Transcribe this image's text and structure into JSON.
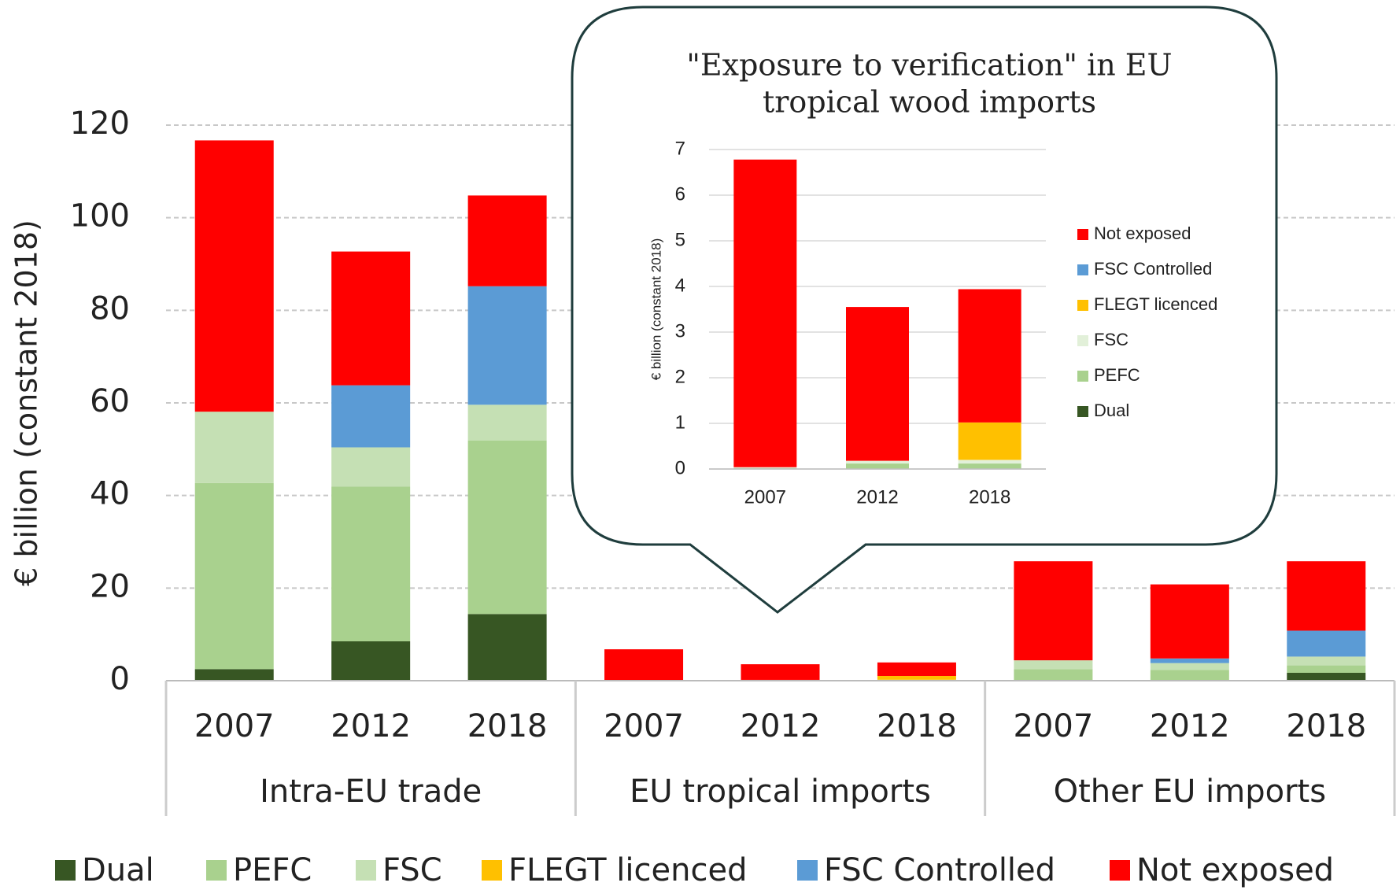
{
  "chart_data": [
    {
      "type": "bar",
      "stacked": true,
      "y_label": "€ billion (constant 2018)",
      "categories": [
        "2007",
        "2012",
        "2018",
        "2007",
        "2012",
        "2018",
        "2007",
        "2012",
        "2018"
      ],
      "groups": [
        "Intra-EU trade",
        "EU tropical imports",
        "Other EU imports"
      ],
      "ylim": [
        0,
        120
      ],
      "yticks": [
        0,
        20,
        40,
        60,
        80,
        100,
        120
      ],
      "grid": true,
      "legend": "bottom",
      "series": [
        {
          "name": "Dual",
          "color": "#375623",
          "values": [
            2.5,
            8.5,
            14.4,
            0,
            0,
            0,
            0,
            0,
            1.7
          ]
        },
        {
          "name": "PEFC",
          "color": "#a9d18e",
          "values": [
            40.2,
            33.4,
            37.5,
            0.02,
            0.12,
            0.12,
            2.5,
            2.3,
            1.6
          ]
        },
        {
          "name": "FSC",
          "color": "#c5e0b4",
          "values": [
            15.4,
            8.5,
            7.7,
            0.02,
            0.06,
            0.08,
            1.9,
            1.5,
            1.9
          ]
        },
        {
          "name": "FLEGT licenced",
          "color": "#ffc000",
          "values": [
            0,
            0,
            0,
            0,
            0,
            0.82,
            0,
            0,
            0
          ]
        },
        {
          "name": "FSC Controlled",
          "color": "#5b9bd5",
          "values": [
            0,
            13.4,
            25.6,
            0,
            0,
            0,
            0,
            1.0,
            5.6
          ]
        },
        {
          "name": "Not exposed",
          "color": "#ff0000",
          "values": [
            58.6,
            28.9,
            19.6,
            6.74,
            3.37,
            2.92,
            21.4,
            16.0,
            15.0
          ]
        }
      ]
    },
    {
      "type": "bar",
      "stacked": true,
      "title": [
        "\"Exposure to verification\" in EU",
        "tropical wood imports"
      ],
      "y_label": "€ billion (constant 2018)",
      "categories": [
        "2007",
        "2012",
        "2018"
      ],
      "ylim": [
        0,
        7
      ],
      "yticks": [
        0,
        1,
        2,
        3,
        4,
        5,
        6,
        7
      ],
      "grid": true,
      "legend": "right",
      "series": [
        {
          "name": "Dual",
          "color": "#375623",
          "values": [
            0,
            0,
            0
          ]
        },
        {
          "name": "PEFC",
          "color": "#a9d18e",
          "values": [
            0.02,
            0.12,
            0.12
          ]
        },
        {
          "name": "FSC",
          "color": "#e2f0d9",
          "values": [
            0.02,
            0.06,
            0.08
          ]
        },
        {
          "name": "FLEGT licenced",
          "color": "#ffc000",
          "values": [
            0,
            0,
            0.82
          ]
        },
        {
          "name": "FSC Controlled",
          "color": "#5b9bd5",
          "values": [
            0,
            0,
            0
          ]
        },
        {
          "name": "Not exposed",
          "color": "#ff0000",
          "values": [
            6.74,
            3.37,
            2.92
          ]
        }
      ]
    }
  ]
}
